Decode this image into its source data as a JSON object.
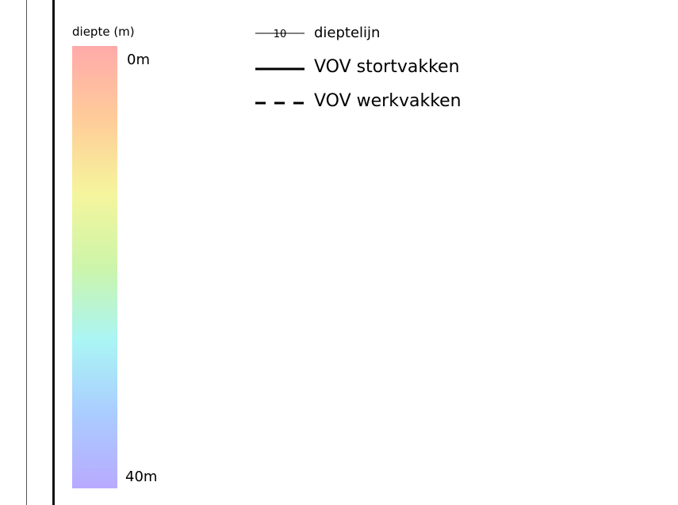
{
  "colors": {
    "gradient": [
      "#ffaaaa",
      "#ffcc99",
      "#f5f59c",
      "#ccf5aa",
      "#aaf5f5",
      "#aaccff",
      "#b8aaff"
    ],
    "line": "#000000"
  },
  "depth_scale": {
    "title": "diepte (m)",
    "top_label": "0m",
    "bottom_label": "40m"
  },
  "legend": {
    "contour": {
      "symbol_text": "10",
      "label": "dieptelijn"
    },
    "solid": {
      "label": "VOV stortvakken"
    },
    "dashed": {
      "label": "VOV werkvakken"
    }
  }
}
